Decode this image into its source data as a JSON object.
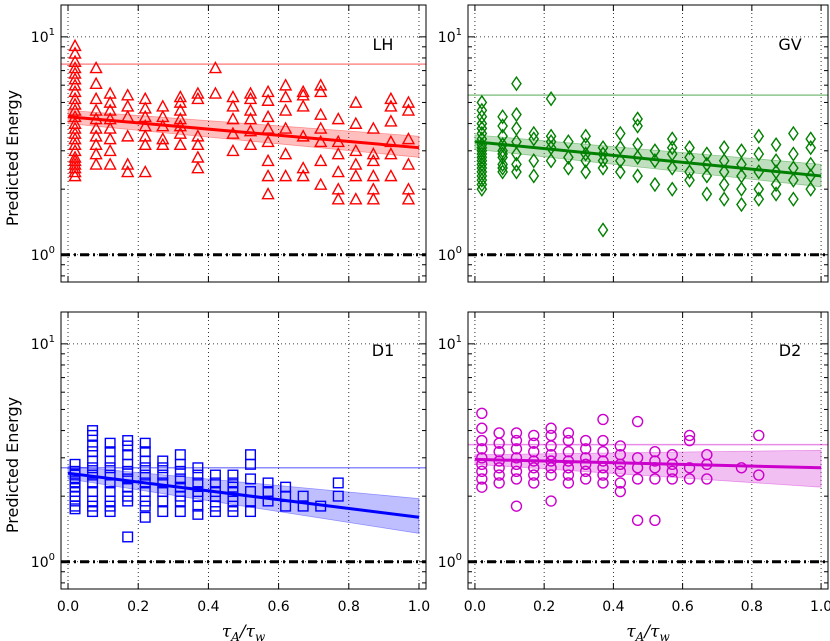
{
  "chart_data": [
    {
      "type": "scatter",
      "panel": "LH",
      "color": "#ff0000",
      "marker": "triangle",
      "ylabel": "Predicted Energy",
      "xlabel": "",
      "yscale": "log",
      "ylim": [
        0.75,
        14
      ],
      "xlim": [
        -0.02,
        1.02
      ],
      "x_ticks": [
        0.0,
        0.2,
        0.4,
        0.6,
        0.8,
        1.0
      ],
      "y_tick_labels": [
        "10^0",
        "10^1"
      ],
      "grid": true,
      "reference_line": 7.5,
      "baseline": 1.0,
      "fit": {
        "y_at_0": 4.3,
        "y_at_1": 3.1,
        "band_at_0": [
          4.0,
          4.6
        ],
        "band_at_1": [
          2.8,
          3.5
        ]
      },
      "x": [
        0.02,
        0.02,
        0.02,
        0.02,
        0.02,
        0.02,
        0.02,
        0.02,
        0.02,
        0.02,
        0.02,
        0.02,
        0.02,
        0.02,
        0.02,
        0.02,
        0.02,
        0.02,
        0.02,
        0.02,
        0.02,
        0.02,
        0.02,
        0.02,
        0.08,
        0.08,
        0.08,
        0.08,
        0.08,
        0.08,
        0.08,
        0.08,
        0.08,
        0.08,
        0.12,
        0.12,
        0.12,
        0.12,
        0.12,
        0.12,
        0.12,
        0.12,
        0.17,
        0.17,
        0.17,
        0.17,
        0.17,
        0.17,
        0.22,
        0.22,
        0.22,
        0.22,
        0.22,
        0.22,
        0.22,
        0.27,
        0.27,
        0.27,
        0.27,
        0.27,
        0.32,
        0.32,
        0.32,
        0.32,
        0.32,
        0.32,
        0.32,
        0.37,
        0.37,
        0.37,
        0.37,
        0.37,
        0.37,
        0.42,
        0.42,
        0.47,
        0.47,
        0.47,
        0.47,
        0.47,
        0.52,
        0.52,
        0.52,
        0.52,
        0.52,
        0.52,
        0.57,
        0.57,
        0.57,
        0.57,
        0.57,
        0.57,
        0.57,
        0.57,
        0.62,
        0.62,
        0.62,
        0.62,
        0.62,
        0.62,
        0.67,
        0.67,
        0.67,
        0.67,
        0.67,
        0.67,
        0.72,
        0.72,
        0.72,
        0.72,
        0.72,
        0.72,
        0.72,
        0.77,
        0.77,
        0.77,
        0.77,
        0.77,
        0.77,
        0.82,
        0.82,
        0.82,
        0.82,
        0.82,
        0.82,
        0.87,
        0.87,
        0.87,
        0.87,
        0.87,
        0.87,
        0.92,
        0.92,
        0.92,
        0.92,
        0.92,
        0.92,
        0.97,
        0.97,
        0.97,
        0.97,
        0.97,
        0.97
      ],
      "y": [
        9.1,
        8.4,
        7.7,
        7.2,
        6.8,
        6.4,
        6.0,
        5.6,
        5.2,
        4.9,
        4.6,
        4.3,
        4.0,
        3.8,
        3.6,
        3.4,
        3.2,
        3.0,
        2.8,
        2.7,
        2.6,
        2.5,
        2.4,
        2.3,
        7.2,
        6.1,
        5.2,
        4.6,
        4.2,
        3.8,
        3.5,
        3.2,
        2.9,
        2.6,
        5.5,
        5.0,
        4.6,
        4.2,
        3.8,
        3.4,
        3.0,
        2.6,
        5.4,
        4.8,
        4.3,
        3.5,
        2.6,
        2.4,
        5.2,
        4.7,
        4.3,
        3.9,
        3.5,
        3.2,
        2.4,
        4.8,
        4.3,
        3.9,
        3.4,
        3.2,
        5.3,
        5.0,
        4.6,
        4.2,
        3.9,
        3.6,
        3.2,
        5.5,
        5.2,
        3.5,
        3.2,
        2.8,
        2.5,
        7.2,
        5.5,
        5.3,
        4.8,
        4.2,
        3.6,
        3.0,
        5.5,
        5.2,
        4.6,
        4.2,
        3.7,
        3.2,
        5.6,
        5.1,
        4.3,
        3.8,
        3.3,
        2.7,
        2.3,
        1.9,
        6.0,
        5.3,
        4.6,
        3.8,
        2.9,
        2.3,
        5.6,
        5.4,
        4.8,
        3.5,
        2.5,
        2.3,
        6.0,
        5.6,
        4.4,
        3.8,
        3.3,
        2.7,
        2.1,
        4.2,
        3.3,
        2.9,
        2.4,
        2.0,
        1.8,
        5.0,
        4.0,
        3.0,
        2.6,
        2.3,
        1.8,
        3.8,
        2.9,
        2.7,
        2.3,
        2.0,
        1.8,
        5.2,
        4.8,
        4.1,
        3.3,
        2.9,
        2.3,
        5.0,
        4.6,
        3.4,
        2.6,
        2.0,
        1.8
      ]
    },
    {
      "type": "scatter",
      "panel": "GV",
      "color": "#008000",
      "marker": "diamond",
      "ylabel": "",
      "xlabel": "",
      "yscale": "log",
      "ylim": [
        0.75,
        14
      ],
      "xlim": [
        -0.02,
        1.02
      ],
      "x_ticks": [
        0.0,
        0.2,
        0.4,
        0.6,
        0.8,
        1.0
      ],
      "y_tick_labels": [
        "10^0",
        "10^1"
      ],
      "grid": true,
      "reference_line": 5.4,
      "baseline": 1.0,
      "fit": {
        "y_at_0": 3.3,
        "y_at_1": 2.3,
        "band_at_0": [
          3.05,
          3.55
        ],
        "band_at_1": [
          2.05,
          2.6
        ]
      },
      "x": [
        0.02,
        0.02,
        0.02,
        0.02,
        0.02,
        0.02,
        0.02,
        0.02,
        0.02,
        0.02,
        0.02,
        0.02,
        0.02,
        0.02,
        0.02,
        0.02,
        0.02,
        0.02,
        0.02,
        0.02,
        0.08,
        0.08,
        0.08,
        0.08,
        0.08,
        0.08,
        0.08,
        0.08,
        0.08,
        0.08,
        0.12,
        0.12,
        0.12,
        0.12,
        0.12,
        0.12,
        0.12,
        0.17,
        0.17,
        0.17,
        0.17,
        0.22,
        0.22,
        0.22,
        0.22,
        0.22,
        0.27,
        0.27,
        0.27,
        0.32,
        0.32,
        0.32,
        0.32,
        0.32,
        0.37,
        0.37,
        0.37,
        0.37,
        0.37,
        0.42,
        0.42,
        0.42,
        0.42,
        0.47,
        0.47,
        0.47,
        0.47,
        0.47,
        0.52,
        0.52,
        0.52,
        0.57,
        0.57,
        0.57,
        0.57,
        0.57,
        0.62,
        0.62,
        0.62,
        0.62,
        0.67,
        0.67,
        0.67,
        0.67,
        0.72,
        0.72,
        0.72,
        0.72,
        0.72,
        0.77,
        0.77,
        0.77,
        0.77,
        0.77,
        0.82,
        0.82,
        0.82,
        0.82,
        0.82,
        0.87,
        0.87,
        0.87,
        0.87,
        0.87,
        0.92,
        0.92,
        0.92,
        0.92,
        0.92,
        0.97,
        0.97,
        0.97,
        0.97,
        0.97
      ],
      "y": [
        5.0,
        4.6,
        4.3,
        4.0,
        3.8,
        3.6,
        3.4,
        3.2,
        3.1,
        3.0,
        2.9,
        2.8,
        2.7,
        2.6,
        2.5,
        2.4,
        2.3,
        2.2,
        2.1,
        2.0,
        4.3,
        3.9,
        3.5,
        3.2,
        3.0,
        2.9,
        2.8,
        2.6,
        2.5,
        2.4,
        6.1,
        4.4,
        3.8,
        3.3,
        2.9,
        2.6,
        2.4,
        3.6,
        3.4,
        2.7,
        2.3,
        5.2,
        3.5,
        3.3,
        3.1,
        2.7,
        3.3,
        2.8,
        2.5,
        3.5,
        3.2,
        2.9,
        2.7,
        2.4,
        3.1,
        2.9,
        2.7,
        2.5,
        1.3,
        3.6,
        3.1,
        2.7,
        2.4,
        4.2,
        3.9,
        3.2,
        2.8,
        2.3,
        3.0,
        2.7,
        2.1,
        3.4,
        3.1,
        2.9,
        2.5,
        2.0,
        3.1,
        2.8,
        2.4,
        2.2,
        2.9,
        2.6,
        2.3,
        1.9,
        3.1,
        2.7,
        2.4,
        2.1,
        1.8,
        3.0,
        2.6,
        2.3,
        2.0,
        1.7,
        3.5,
        2.9,
        2.4,
        2.0,
        1.8,
        3.2,
        2.7,
        2.4,
        2.1,
        1.9,
        3.6,
        2.9,
        2.5,
        2.2,
        1.8,
        3.4,
        3.1,
        2.6,
        2.3,
        2.0
      ]
    },
    {
      "type": "scatter",
      "panel": "D1",
      "color": "#0000ff",
      "marker": "square",
      "ylabel": "Predicted Energy",
      "xlabel": "τA/τw",
      "yscale": "log",
      "ylim": [
        0.75,
        14
      ],
      "xlim": [
        -0.02,
        1.02
      ],
      "x_ticks": [
        0.0,
        0.2,
        0.4,
        0.6,
        0.8,
        1.0
      ],
      "x_tick_labels": [
        "0.0",
        "0.2",
        "0.4",
        "0.6",
        "0.8",
        "1.0"
      ],
      "y_tick_labels": [
        "10^0",
        "10^1"
      ],
      "grid": true,
      "reference_line": 2.7,
      "baseline": 1.0,
      "fit": {
        "y_at_0": 2.55,
        "y_at_1": 1.6,
        "band_at_0": [
          2.4,
          2.75
        ],
        "band_at_1": [
          1.35,
          1.95
        ]
      },
      "x": [
        0.02,
        0.02,
        0.02,
        0.02,
        0.02,
        0.02,
        0.02,
        0.02,
        0.02,
        0.02,
        0.02,
        0.07,
        0.07,
        0.07,
        0.07,
        0.07,
        0.07,
        0.07,
        0.07,
        0.07,
        0.07,
        0.07,
        0.07,
        0.12,
        0.12,
        0.12,
        0.12,
        0.12,
        0.12,
        0.12,
        0.12,
        0.12,
        0.12,
        0.17,
        0.17,
        0.17,
        0.17,
        0.17,
        0.17,
        0.17,
        0.17,
        0.17,
        0.17,
        0.22,
        0.22,
        0.22,
        0.22,
        0.22,
        0.22,
        0.22,
        0.22,
        0.22,
        0.22,
        0.27,
        0.27,
        0.27,
        0.27,
        0.27,
        0.27,
        0.27,
        0.32,
        0.32,
        0.32,
        0.32,
        0.32,
        0.32,
        0.32,
        0.32,
        0.37,
        0.37,
        0.37,
        0.37,
        0.37,
        0.37,
        0.37,
        0.42,
        0.42,
        0.42,
        0.42,
        0.42,
        0.42,
        0.47,
        0.47,
        0.47,
        0.47,
        0.47,
        0.47,
        0.47,
        0.52,
        0.52,
        0.52,
        0.52,
        0.52,
        0.52,
        0.57,
        0.57,
        0.57,
        0.62,
        0.62,
        0.62,
        0.67,
        0.67,
        0.72,
        0.77,
        0.77
      ],
      "y": [
        2.8,
        2.6,
        2.5,
        2.4,
        2.3,
        2.2,
        2.1,
        2.0,
        1.9,
        1.8,
        1.75,
        4.0,
        3.8,
        3.4,
        3.2,
        2.9,
        2.7,
        2.5,
        2.3,
        2.1,
        1.9,
        1.8,
        1.7,
        3.5,
        3.2,
        2.9,
        2.7,
        2.5,
        2.3,
        2.1,
        1.9,
        1.8,
        1.7,
        3.6,
        3.4,
        3.1,
        2.8,
        2.6,
        2.4,
        2.2,
        2.0,
        1.9,
        1.3,
        3.5,
        3.2,
        2.9,
        2.7,
        2.5,
        2.3,
        2.1,
        1.9,
        1.8,
        1.6,
        2.9,
        2.7,
        2.5,
        2.3,
        2.1,
        1.9,
        1.7,
        3.1,
        2.8,
        2.6,
        2.4,
        2.2,
        2.0,
        1.9,
        1.7,
        2.7,
        2.5,
        2.3,
        2.1,
        2.0,
        1.8,
        1.65,
        2.5,
        2.3,
        2.1,
        2.0,
        1.8,
        1.7,
        2.5,
        2.3,
        2.2,
        2.1,
        1.9,
        1.8,
        1.7,
        3.1,
        2.8,
        2.4,
        2.1,
        1.9,
        1.7,
        2.3,
        2.1,
        1.9,
        2.2,
        2.0,
        1.8,
        2.0,
        1.8,
        1.8,
        2.3,
        2.0
      ]
    },
    {
      "type": "scatter",
      "panel": "D2",
      "color": "#cc00cc",
      "marker": "circle",
      "ylabel": "",
      "xlabel": "τA/τw",
      "yscale": "log",
      "ylim": [
        0.75,
        14
      ],
      "xlim": [
        -0.02,
        1.02
      ],
      "x_ticks": [
        0.0,
        0.2,
        0.4,
        0.6,
        0.8,
        1.0
      ],
      "x_tick_labels": [
        "0.0",
        "0.2",
        "0.4",
        "0.6",
        "0.8",
        "1.0"
      ],
      "y_tick_labels": [
        "10^0",
        "10^1"
      ],
      "grid": true,
      "reference_line": 3.45,
      "baseline": 1.0,
      "fit": {
        "y_at_0": 2.95,
        "y_at_1": 2.7,
        "band_at_0": [
          2.8,
          3.1
        ],
        "band_at_1": [
          2.2,
          3.25
        ]
      },
      "x": [
        0.02,
        0.02,
        0.02,
        0.02,
        0.02,
        0.02,
        0.02,
        0.02,
        0.02,
        0.07,
        0.07,
        0.07,
        0.07,
        0.07,
        0.07,
        0.07,
        0.12,
        0.12,
        0.12,
        0.12,
        0.12,
        0.12,
        0.12,
        0.12,
        0.17,
        0.17,
        0.17,
        0.17,
        0.17,
        0.17,
        0.17,
        0.22,
        0.22,
        0.22,
        0.22,
        0.22,
        0.22,
        0.22,
        0.22,
        0.27,
        0.27,
        0.27,
        0.27,
        0.27,
        0.27,
        0.27,
        0.32,
        0.32,
        0.32,
        0.32,
        0.32,
        0.32,
        0.37,
        0.37,
        0.37,
        0.37,
        0.37,
        0.37,
        0.37,
        0.42,
        0.42,
        0.42,
        0.42,
        0.42,
        0.42,
        0.47,
        0.47,
        0.47,
        0.47,
        0.47,
        0.52,
        0.52,
        0.52,
        0.52,
        0.52,
        0.57,
        0.57,
        0.57,
        0.57,
        0.62,
        0.62,
        0.62,
        0.62,
        0.67,
        0.67,
        0.67,
        0.77,
        0.82,
        0.82
      ],
      "y": [
        4.8,
        4.1,
        3.6,
        3.3,
        3.0,
        2.8,
        2.6,
        2.4,
        2.2,
        3.9,
        3.5,
        3.2,
        2.9,
        2.7,
        2.5,
        2.3,
        3.9,
        3.6,
        3.3,
        3.0,
        2.8,
        2.6,
        2.4,
        1.8,
        3.8,
        3.5,
        3.2,
        2.9,
        2.7,
        2.5,
        2.3,
        4.1,
        3.8,
        3.4,
        3.1,
        2.9,
        2.7,
        2.5,
        1.9,
        3.9,
        3.6,
        3.2,
        2.9,
        2.7,
        2.5,
        2.3,
        3.6,
        3.3,
        3.0,
        2.8,
        2.6,
        2.4,
        4.5,
        3.6,
        3.2,
        2.9,
        2.7,
        2.5,
        2.3,
        3.4,
        3.1,
        2.8,
        2.6,
        2.3,
        2.1,
        4.4,
        3.0,
        2.7,
        2.4,
        1.55,
        3.2,
        2.9,
        2.7,
        2.4,
        1.55,
        3.1,
        2.8,
        2.6,
        2.4,
        3.8,
        3.6,
        2.7,
        2.4,
        3.1,
        2.8,
        2.4,
        2.7,
        3.8,
        2.5
      ]
    }
  ]
}
